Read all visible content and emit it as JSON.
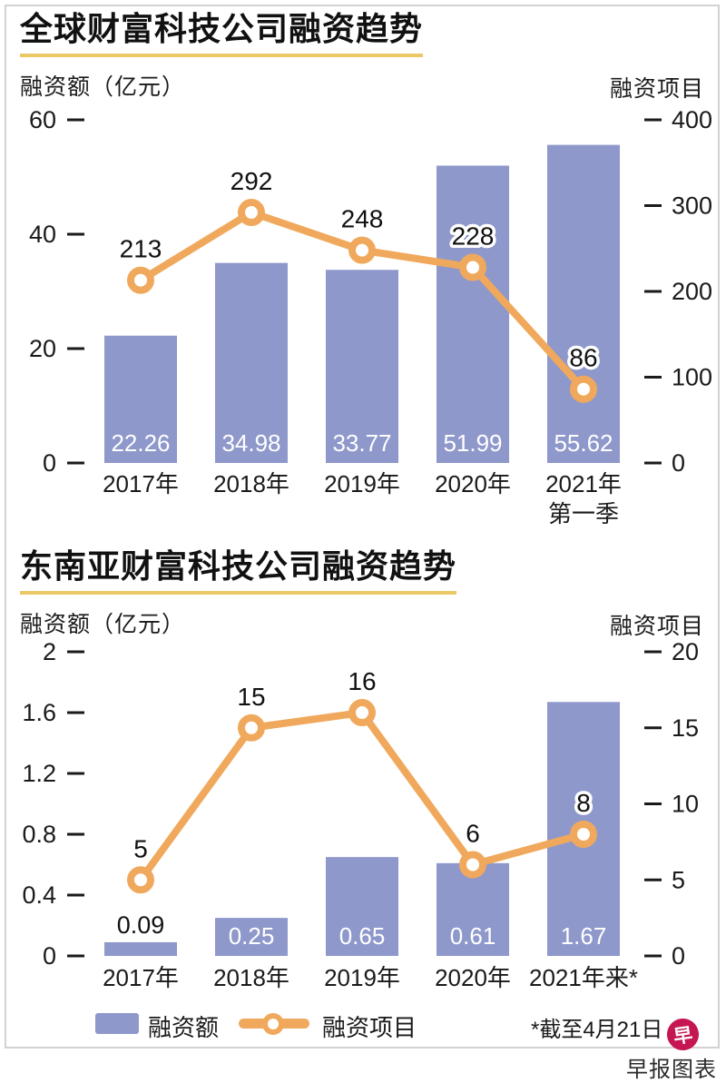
{
  "page": {
    "credit": "早报图表",
    "logo_char": "早"
  },
  "colors": {
    "bar": "#8e98cb",
    "line": "#f0a95c",
    "underline": "#ebc766",
    "logo": "#c51653",
    "tick": "#1a1a1a"
  },
  "legend": {
    "bar_label": "融资额",
    "line_label": "融资项目",
    "note": "*截至4月21日"
  },
  "chart_data": [
    {
      "type": "bar+line",
      "title": "全球财富科技公司融资趋势",
      "left_axis": {
        "label": "融资额（亿元）",
        "ticks": [
          "60",
          "40",
          "20",
          "0"
        ],
        "range": [
          0,
          60
        ]
      },
      "right_axis": {
        "label": "融资项目",
        "ticks": [
          "400",
          "300",
          "200",
          "100",
          "0"
        ],
        "range": [
          0,
          400
        ]
      },
      "categories": [
        "2017年",
        "2018年",
        "2019年",
        "2020年",
        "2021年\n第一季"
      ],
      "series": [
        {
          "name": "融资额",
          "type": "bar",
          "axis": "left",
          "values": [
            "22.26",
            "34.98",
            "33.77",
            "51.99",
            "55.62"
          ]
        },
        {
          "name": "融资项目",
          "type": "line",
          "axis": "right",
          "values": [
            "213",
            "292",
            "248",
            "228",
            "86"
          ]
        }
      ],
      "grid": false,
      "legend_position": "bottom-shared"
    },
    {
      "type": "bar+line",
      "title": "东南亚财富科技公司融资趋势",
      "left_axis": {
        "label": "融资额（亿元）",
        "ticks": [
          "2",
          "1.6",
          "1.2",
          "0.8",
          "0.4",
          "0"
        ],
        "range": [
          0,
          2
        ]
      },
      "right_axis": {
        "label": "融资项目",
        "ticks": [
          "20",
          "15",
          "10",
          "5",
          "0"
        ],
        "range": [
          0,
          20
        ]
      },
      "categories": [
        "2017年",
        "2018年",
        "2019年",
        "2020年",
        "2021年来*"
      ],
      "series": [
        {
          "name": "融资额",
          "type": "bar",
          "axis": "left",
          "values": [
            "0.09",
            "0.25",
            "0.65",
            "0.61",
            "1.67"
          ]
        },
        {
          "name": "融资项目",
          "type": "line",
          "axis": "right",
          "values": [
            "5",
            "15",
            "16",
            "6",
            "8"
          ]
        }
      ],
      "grid": false,
      "legend_position": "bottom-shared"
    }
  ]
}
